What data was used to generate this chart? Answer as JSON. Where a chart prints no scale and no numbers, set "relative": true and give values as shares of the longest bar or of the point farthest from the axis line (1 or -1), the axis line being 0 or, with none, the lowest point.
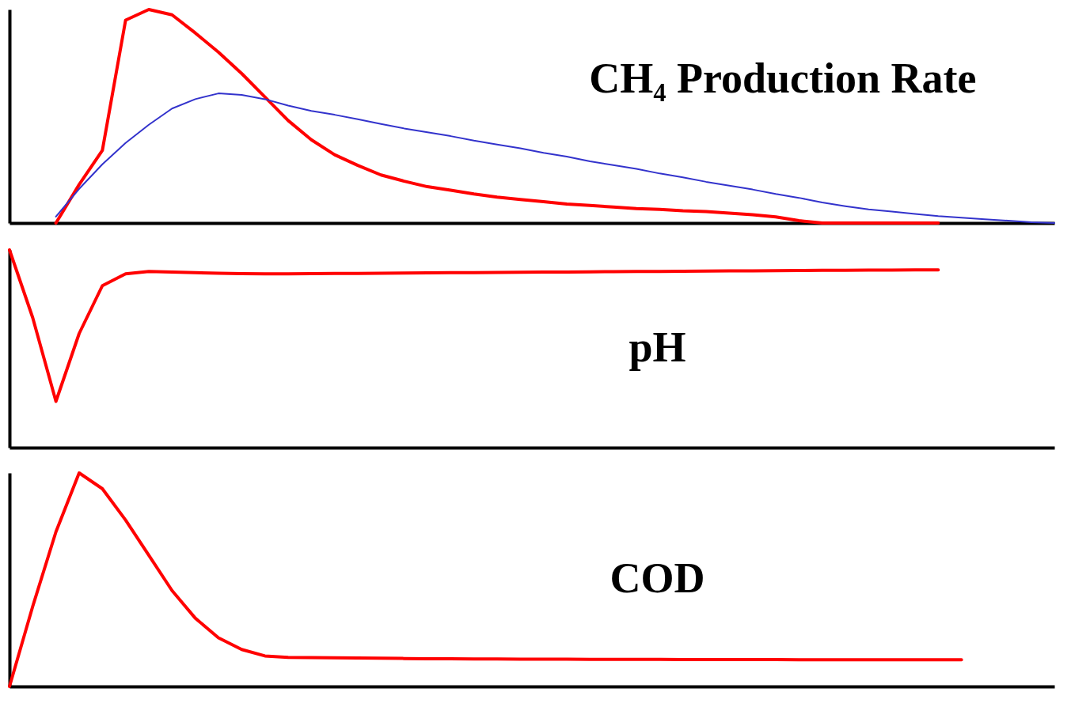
{
  "chart_data": [
    {
      "type": "line",
      "title": "CH₄ Production Rate",
      "relative": true,
      "tick_labels": false,
      "grid": false,
      "marker": "none",
      "line_style": "solid",
      "categories": [
        null,
        null,
        null,
        null,
        null,
        null,
        null,
        null,
        null,
        null,
        null,
        null,
        null,
        null,
        null,
        null,
        null,
        null,
        null,
        null,
        null,
        null,
        null,
        null,
        null,
        null,
        null,
        null,
        null,
        null,
        null,
        null,
        null,
        null,
        null,
        null,
        null,
        null,
        null,
        null,
        null,
        null,
        null,
        null,
        null,
        null
      ],
      "series": [
        {
          "color": "#ff0000",
          "values": [
            null,
            null,
            0,
            0.18,
            0.34,
            0.95,
            1.0,
            0.975,
            0.89,
            0.8,
            0.7,
            0.59,
            0.48,
            0.39,
            0.32,
            0.27,
            0.225,
            0.196,
            0.17,
            0.154,
            0.136,
            0.121,
            0.11,
            0.1,
            0.089,
            0.082,
            0.075,
            0.068,
            0.064,
            0.057,
            0.054,
            0.046,
            0.039,
            0.029,
            0.011,
            0,
            0,
            0,
            0,
            0,
            0,
            null,
            null,
            null,
            null,
            null
          ]
        },
        {
          "color": "#3333cc",
          "values": [
            null,
            null,
            0.03,
            0.16,
            0.275,
            0.375,
            0.46,
            0.536,
            0.58,
            0.607,
            0.6,
            0.58,
            0.55,
            0.525,
            0.507,
            0.486,
            0.464,
            0.443,
            0.425,
            0.407,
            0.386,
            0.368,
            0.35,
            0.329,
            0.311,
            0.289,
            0.271,
            0.254,
            0.232,
            0.214,
            0.193,
            0.175,
            0.157,
            0.136,
            0.118,
            0.096,
            0.079,
            0.064,
            0.054,
            0.043,
            0.032,
            0.025,
            0.018,
            0.011,
            0.004,
            0
          ]
        }
      ]
    },
    {
      "type": "line",
      "title": "pH",
      "relative": true,
      "tick_labels": false,
      "grid": false,
      "marker": "none",
      "line_style": "solid",
      "categories": [
        null,
        null,
        null,
        null,
        null,
        null,
        null,
        null,
        null,
        null,
        null,
        null,
        null,
        null,
        null,
        null,
        null,
        null,
        null,
        null,
        null,
        null,
        null,
        null,
        null,
        null,
        null,
        null,
        null,
        null,
        null,
        null,
        null,
        null,
        null,
        null,
        null,
        null,
        null,
        null,
        null,
        null,
        null,
        null,
        null,
        null
      ],
      "series": [
        {
          "color": "#ff0000",
          "values": [
            1.0,
            0.657,
            0.234,
            0.577,
            0.819,
            0.879,
            0.891,
            0.888,
            0.885,
            0.882,
            0.88,
            0.879,
            0.879,
            0.88,
            0.881,
            0.881,
            0.882,
            0.883,
            0.884,
            0.885,
            0.885,
            0.886,
            0.887,
            0.888,
            0.888,
            0.889,
            0.89,
            0.891,
            0.891,
            0.892,
            0.893,
            0.894,
            0.894,
            0.895,
            0.896,
            0.897,
            0.897,
            0.898,
            0.898,
            0.899,
            0.899,
            null,
            null,
            null,
            null,
            null
          ]
        }
      ]
    },
    {
      "type": "line",
      "title": "COD",
      "relative": true,
      "tick_labels": false,
      "grid": false,
      "marker": "none",
      "line_style": "solid",
      "categories": [
        null,
        null,
        null,
        null,
        null,
        null,
        null,
        null,
        null,
        null,
        null,
        null,
        null,
        null,
        null,
        null,
        null,
        null,
        null,
        null,
        null,
        null,
        null,
        null,
        null,
        null,
        null,
        null,
        null,
        null,
        null,
        null,
        null,
        null,
        null,
        null,
        null,
        null,
        null,
        null,
        null,
        null,
        null,
        null,
        null,
        null
      ],
      "series": [
        {
          "color": "#ff0000",
          "values": [
            0,
            0.375,
            0.724,
            1.0,
            0.926,
            0.779,
            0.614,
            0.449,
            0.32,
            0.228,
            0.173,
            0.143,
            0.136,
            0.135,
            0.134,
            0.133,
            0.132,
            0.131,
            0.13,
            0.13,
            0.129,
            0.129,
            0.128,
            0.128,
            0.128,
            0.127,
            0.127,
            0.127,
            0.127,
            0.126,
            0.126,
            0.126,
            0.126,
            0.126,
            0.125,
            0.125,
            0.125,
            0.125,
            0.125,
            0.125,
            0.125,
            0.125,
            null,
            null,
            null,
            null
          ]
        }
      ]
    }
  ]
}
